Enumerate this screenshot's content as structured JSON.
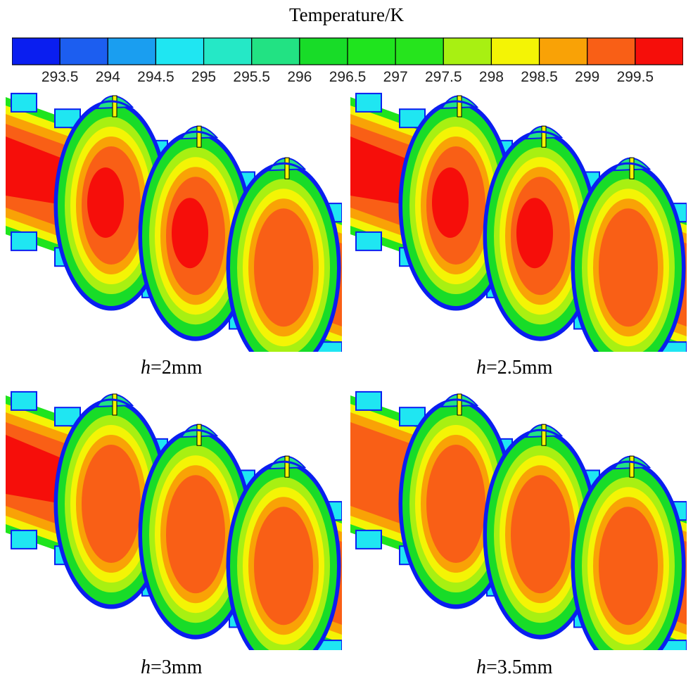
{
  "colorbar": {
    "title": "Temperature/K",
    "tick_labels": [
      "293.5",
      "294",
      "294.5",
      "295",
      "295.5",
      "296",
      "296.5",
      "297",
      "297.5",
      "298",
      "298.5",
      "299",
      "299.5"
    ],
    "colors": [
      "#0a1ef0",
      "#1c5ef0",
      "#1a9ef0",
      "#1fe6f2",
      "#25e8c6",
      "#22e283",
      "#18dc28",
      "#1fe41e",
      "#26e41d",
      "#a8f012",
      "#f4f405",
      "#f9a206",
      "#f95f16",
      "#f60e0a"
    ]
  },
  "panels": [
    {
      "var": "h",
      "value": "=2mm",
      "core_peak_level": 0.95
    },
    {
      "var": "h",
      "value": "=2.5mm",
      "core_peak_level": 0.93
    },
    {
      "var": "h",
      "value": "=3mm",
      "core_peak_level": 0.88
    },
    {
      "var": "h",
      "value": "=3.5mm",
      "core_peak_level": 0.84
    }
  ]
}
